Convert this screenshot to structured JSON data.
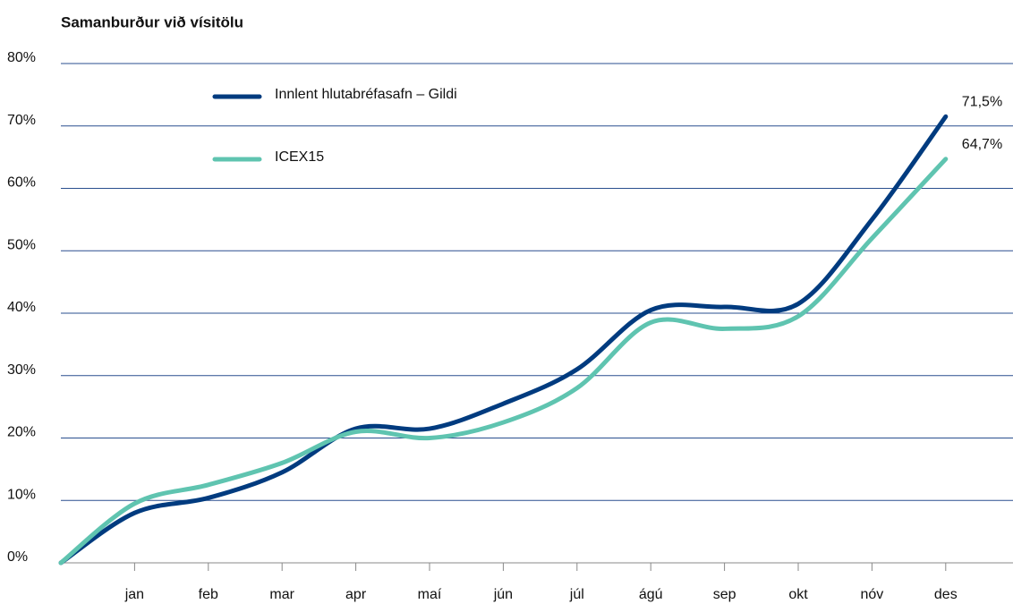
{
  "chart_data": {
    "type": "line",
    "title": "Samanburður við vísitölu",
    "categories": [
      null,
      "jan",
      "feb",
      "mar",
      "apr",
      "maí",
      "jún",
      "júl",
      "ágú",
      "sep",
      "okt",
      "nóv",
      "des"
    ],
    "series": [
      {
        "name": "Innlent hlutabréfasafn – Gildi",
        "color": "#003b7f",
        "values": [
          0,
          8,
          10.4,
          14.5,
          21.5,
          21.5,
          25.5,
          31,
          40.5,
          41,
          41.5,
          55,
          71.5
        ],
        "value_labels": [
          null,
          null,
          null,
          null,
          null,
          null,
          null,
          null,
          null,
          null,
          null,
          null,
          "71,5%"
        ]
      },
      {
        "name": "ICEX15",
        "color": "#5fc4b0",
        "values": [
          0,
          9.5,
          12.5,
          16,
          21,
          20,
          22.5,
          28,
          38.5,
          37.5,
          39.5,
          52,
          64.7
        ],
        "value_labels": [
          null,
          null,
          null,
          null,
          null,
          null,
          null,
          null,
          null,
          null,
          null,
          null,
          "64,7%"
        ]
      }
    ],
    "ylim": [
      0,
      80
    ],
    "yticks": [
      {
        "value": 0,
        "label": "0%"
      },
      {
        "value": 10,
        "label": "10%"
      },
      {
        "value": 20,
        "label": "20%"
      },
      {
        "value": 30,
        "label": "30%"
      },
      {
        "value": 40,
        "label": "40%"
      },
      {
        "value": 50,
        "label": "50%"
      },
      {
        "value": 60,
        "label": "60%"
      },
      {
        "value": 70,
        "label": "70%"
      },
      {
        "value": 80,
        "label": "80%"
      }
    ],
    "grid": true,
    "legend": "top-left"
  }
}
